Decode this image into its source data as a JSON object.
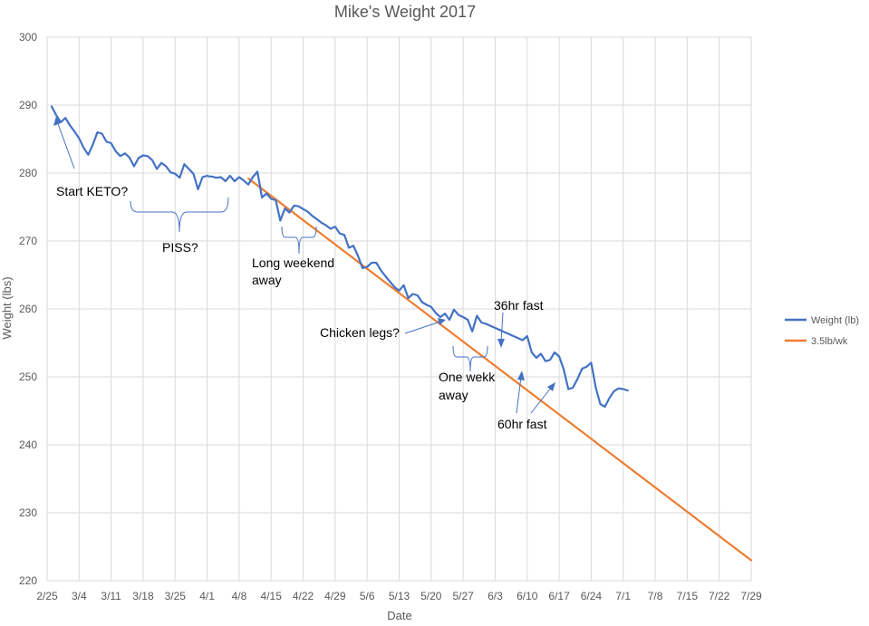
{
  "chart_data": {
    "type": "line",
    "title": "Mike's Weight 2017",
    "xlabel": "Date",
    "ylabel": "Weight (lbs)",
    "ylim": [
      220,
      300
    ],
    "y_ticks": [
      "220",
      "230",
      "240",
      "250",
      "260",
      "270",
      "280",
      "290",
      "300"
    ],
    "x_range_days": [
      0,
      154
    ],
    "x_ticks": [
      "2/25",
      "3/4",
      "3/11",
      "3/18",
      "3/25",
      "4/1",
      "4/8",
      "4/15",
      "4/22",
      "4/29",
      "5/6",
      "5/13",
      "5/20",
      "5/27",
      "6/3",
      "6/10",
      "6/17",
      "6/24",
      "7/1",
      "7/8",
      "7/15",
      "7/22",
      "7/29"
    ],
    "grid": true,
    "legend_position": "right",
    "x_note": "x values are days since 2/25",
    "series": [
      {
        "name": "Weight (lb)",
        "color": "#4472c4",
        "x": [
          1,
          2,
          3,
          4,
          5,
          6,
          7,
          8,
          9,
          10,
          11,
          12,
          13,
          14,
          15,
          16,
          17,
          18,
          19,
          20,
          21,
          22,
          23,
          24,
          25,
          26,
          27,
          28,
          29,
          30,
          31,
          32,
          33,
          34,
          35,
          35.5,
          36,
          37,
          38,
          39,
          40,
          41,
          42,
          43,
          44,
          45,
          46,
          47,
          48,
          49,
          50,
          51,
          52,
          53,
          54,
          55,
          56,
          57,
          58,
          59,
          60,
          61,
          62,
          63,
          64,
          65,
          66,
          67,
          68,
          69,
          70,
          71,
          72,
          73,
          74,
          75,
          76,
          77,
          78,
          79,
          80,
          81,
          82,
          83,
          84,
          85,
          86,
          87,
          88,
          89,
          90,
          91,
          92,
          93,
          94,
          95,
          96,
          97,
          98,
          99,
          100,
          101,
          102,
          103,
          104,
          105,
          106,
          107,
          108,
          109,
          110,
          111,
          112,
          113,
          114,
          115,
          116,
          117,
          118,
          119,
          120,
          121,
          122,
          123,
          124,
          125,
          126,
          127
        ],
        "values": [
          289.8,
          288.5,
          287.5,
          288.1,
          287.0,
          286.1,
          285.1,
          283.7,
          282.7,
          284.2,
          286.0,
          285.8,
          284.6,
          284.4,
          283.2,
          282.5,
          282.9,
          282.3,
          281.0,
          282.2,
          282.6,
          282.5,
          281.9,
          280.6,
          281.5,
          281.0,
          280.1,
          279.9,
          279.3,
          281.3,
          280.6,
          279.9,
          277.6,
          279.4,
          279.6,
          279.5,
          279.5,
          279.3,
          279.4,
          278.8,
          279.6,
          278.8,
          279.4,
          278.9,
          278.3,
          279.4,
          280.2,
          276.4,
          277.0,
          276.2,
          276.0,
          273.0,
          274.8,
          274.2,
          275.2,
          275.1,
          274.7,
          274.3,
          273.7,
          273.2,
          272.7,
          272.3,
          271.8,
          272.1,
          271.1,
          270.9,
          269.0,
          269.3,
          267.8,
          266.0,
          266.2,
          266.8,
          266.8,
          265.7,
          264.8,
          264.0,
          263.2,
          262.7,
          263.5,
          261.6,
          262.2,
          262.0,
          261.0,
          260.6,
          260.3,
          259.4,
          258.8,
          259.3,
          258.4,
          259.9,
          259.1,
          258.8,
          258.4,
          256.7,
          259.0,
          258.0,
          257.8,
          257.5,
          257.2,
          256.9,
          256.6,
          256.3,
          256.0,
          255.7,
          255.4,
          256.0,
          253.6,
          252.8,
          253.4,
          252.3,
          252.5,
          253.6,
          253.0,
          251.1,
          248.2,
          248.4,
          249.7,
          251.2,
          251.5,
          252.1,
          248.4,
          246.0,
          245.6,
          246.9,
          247.9,
          248.3,
          248.2,
          248.0
        ]
      },
      {
        "name": "3.5lb/wk",
        "color": "#ed7d31",
        "x": [
          44,
          154
        ],
        "values": [
          279.2,
          223.0
        ]
      }
    ],
    "annotations": [
      {
        "text": "Start KETO?"
      },
      {
        "text": "PISS?"
      },
      {
        "text": "Long weekend away"
      },
      {
        "text": "Chicken legs?"
      },
      {
        "text": "36hr fast"
      },
      {
        "text": "One wekk away"
      },
      {
        "text": "60hr fast"
      }
    ]
  },
  "text": {
    "annotation_start_keto": "Start KETO?",
    "annotation_piss": "PISS?",
    "annotation_long_weekend_1": "Long weekend",
    "annotation_long_weekend_2": "away",
    "annotation_chicken_legs": "Chicken legs?",
    "annotation_36hr": "36hr fast",
    "annotation_one_week_1": "One wekk",
    "annotation_one_week_2": "away",
    "annotation_60hr": "60hr fast"
  },
  "colors": {
    "grid": "#d9d9d9",
    "text": "#595959",
    "annotation_text": "#000000",
    "annotation_shapes": "#4472c4"
  }
}
